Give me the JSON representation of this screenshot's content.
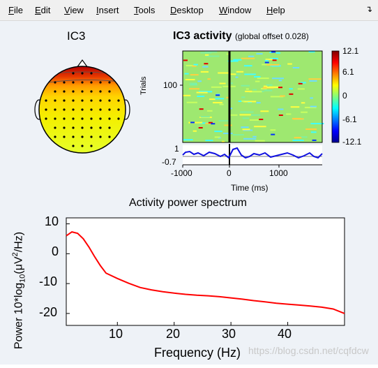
{
  "menu": {
    "items": [
      {
        "label": "File",
        "underline": "F",
        "rest": "ile"
      },
      {
        "label": "Edit",
        "underline": "E",
        "rest": "dit"
      },
      {
        "label": "View",
        "underline": "V",
        "rest": "iew"
      },
      {
        "label": "Insert",
        "underline": "I",
        "rest": "nsert"
      },
      {
        "label": "Tools",
        "underline": "T",
        "rest": "ools"
      },
      {
        "label": "Desktop",
        "underline": "D",
        "rest": "esktop"
      },
      {
        "label": "Window",
        "underline": "W",
        "rest": "indow"
      },
      {
        "label": "Help",
        "underline": "H",
        "rest": "elp"
      }
    ],
    "dock_icon": "dock-arrow-icon"
  },
  "topo": {
    "title": "IC3"
  },
  "erpimage": {
    "title": "IC3 activity",
    "subtitle": "(global offset 0.028)",
    "ylabel": "Trials",
    "ytick": "100",
    "colorbar_ticks": [
      "12.1",
      "6.1",
      "0",
      "-6.1",
      "-12.1"
    ],
    "erp_ticks": [
      "1",
      "-0.7"
    ],
    "xticks": [
      "-1000",
      "0",
      "1000"
    ],
    "xlabel": "Time (ms)"
  },
  "spectrum": {
    "title": "Activity power spectrum",
    "ylabel_prefix": "Power 10*log",
    "ylabel_sub": "10",
    "ylabel_mid": "(μV",
    "ylabel_sup": "2",
    "ylabel_suffix": "/Hz)",
    "xlabel": "Frequency (Hz)",
    "yticks": [
      "10",
      "0",
      "-10",
      "-20"
    ],
    "xticks": [
      "10",
      "20",
      "30",
      "40"
    ]
  },
  "watermark": "https://blog.csdn.net/cqfdcw",
  "chart_data": {
    "type": "line",
    "title": "Activity power spectrum",
    "xlabel": "Frequency (Hz)",
    "ylabel": "Power 10*log10(μV2/Hz)",
    "xlim": [
      1,
      50
    ],
    "ylim": [
      -24,
      12
    ],
    "x": [
      1,
      2,
      3,
      4,
      5,
      6,
      7,
      8,
      10,
      12,
      14,
      16,
      18,
      20,
      22,
      24,
      26,
      28,
      30,
      32,
      34,
      36,
      38,
      40,
      42,
      44,
      46,
      48,
      50
    ],
    "series": [
      {
        "values": [
          6.0,
          7.3,
          6.8,
          5.0,
          2.2,
          -1.0,
          -4.0,
          -6.5,
          -8.3,
          -9.9,
          -11.3,
          -12.1,
          -12.7,
          -13.2,
          -13.6,
          -13.9,
          -14.1,
          -14.4,
          -14.8,
          -15.2,
          -15.7,
          -16.1,
          -16.6,
          -16.9,
          -17.2,
          -17.5,
          -17.9,
          -18.5,
          -20.0
        ]
      }
    ],
    "color": "#ff0000",
    "grid": false
  }
}
